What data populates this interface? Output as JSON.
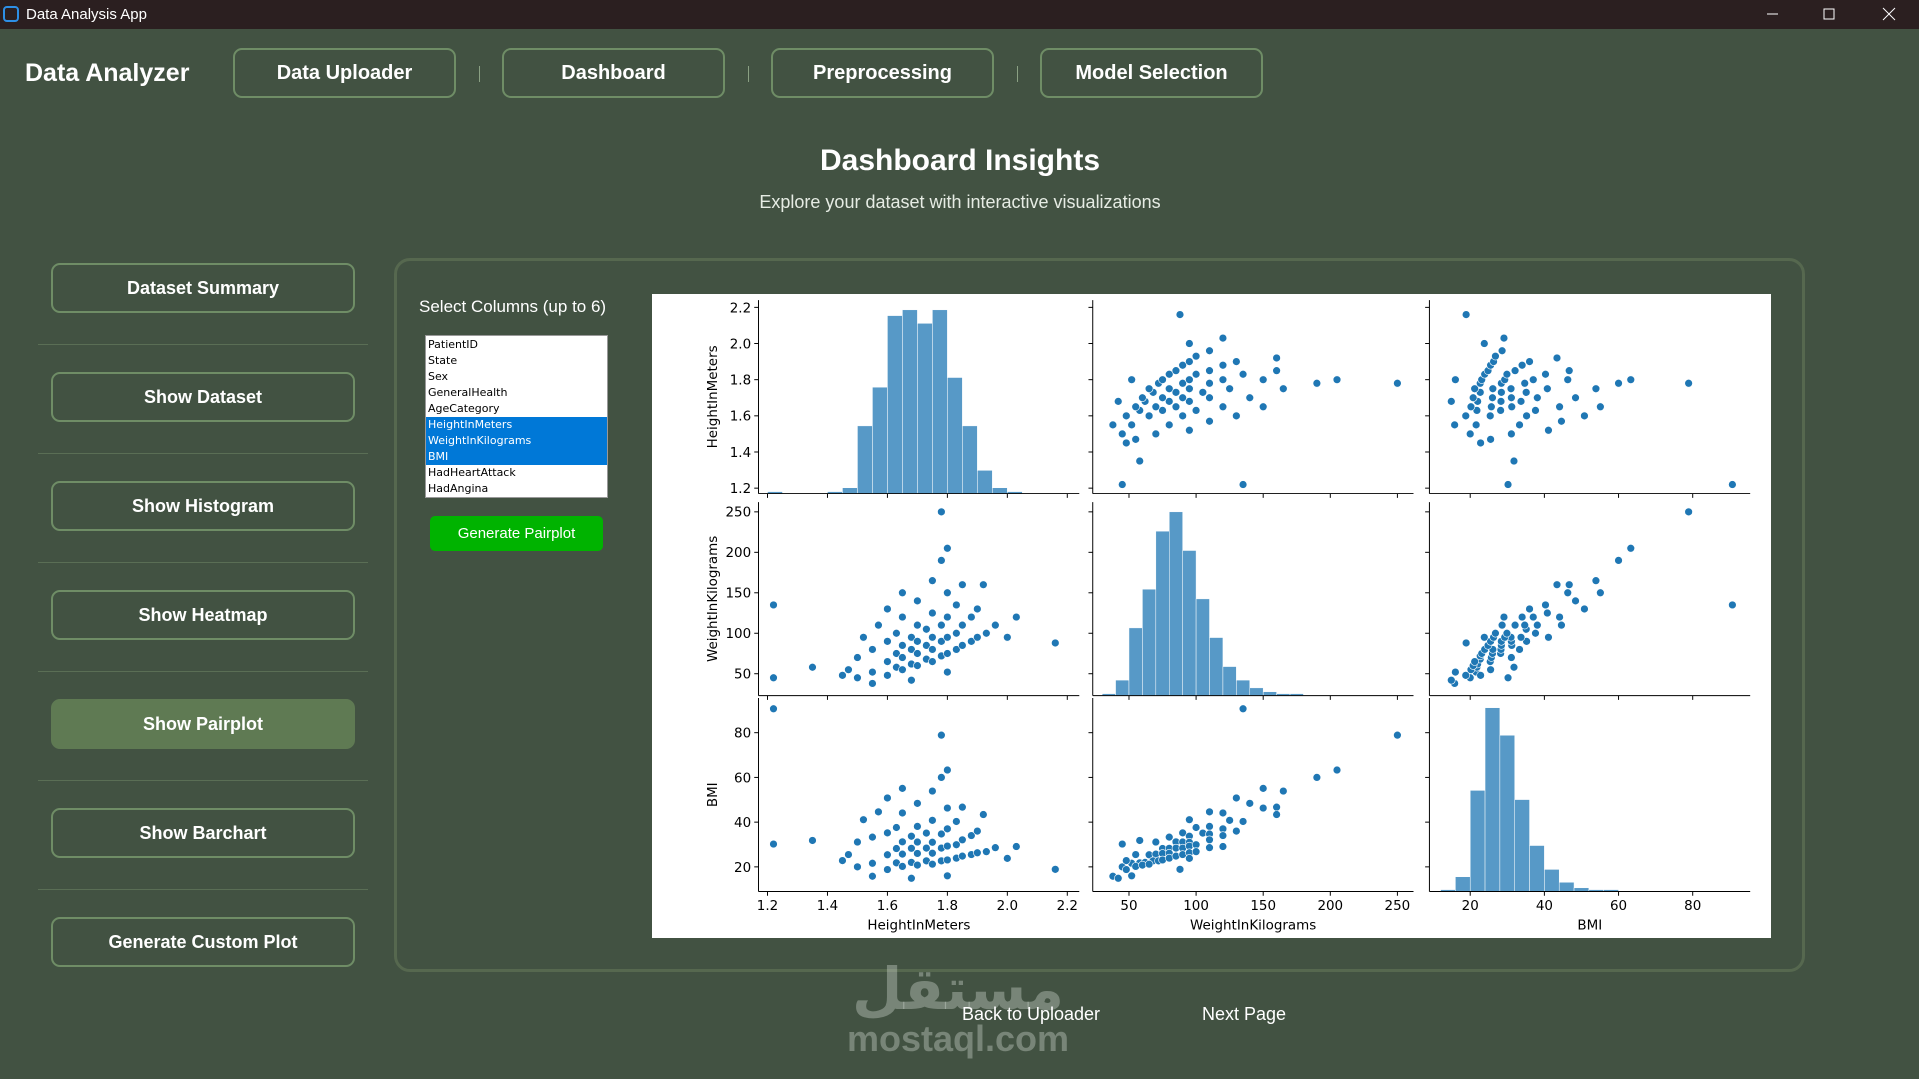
{
  "window": {
    "title": "Data Analysis App"
  },
  "header": {
    "app_name": "Data Analyzer",
    "nav": [
      "Data Uploader",
      "Dashboard",
      "Preprocessing",
      "Model Selection"
    ]
  },
  "page": {
    "title": "Dashboard Insights",
    "subtitle": "Explore your dataset with interactive visualizations"
  },
  "sidebar": {
    "buttons": [
      "Dataset Summary",
      "Show Dataset",
      "Show Histogram",
      "Show Heatmap",
      "Show Pairplot",
      "Show Barchart",
      "Generate Custom Plot"
    ],
    "active": 4
  },
  "selector": {
    "label": "Select Columns (up to 6)",
    "columns": [
      "PatientID",
      "State",
      "Sex",
      "GeneralHealth",
      "AgeCategory",
      "HeightInMeters",
      "WeightInKilograms",
      "BMI",
      "HadHeartAttack",
      "HadAngina"
    ],
    "selected": [
      5,
      6,
      7
    ],
    "button": "Generate Pairplot"
  },
  "footer": {
    "back": "Back to Uploader",
    "next": "Next Page"
  },
  "watermark": [
    "مستقل",
    "mostaql.com"
  ],
  "chart_data": {
    "type": "pairplot",
    "color": "#1f77b4",
    "variables": [
      "HeightInMeters",
      "WeightInKilograms",
      "BMI"
    ],
    "lims": [
      [
        1.17,
        2.24
      ],
      [
        23,
        262
      ],
      [
        9,
        95.5
      ]
    ],
    "ticks": [
      [
        1.2,
        1.4,
        1.6,
        1.8,
        {
          "value": 2,
          "label": "2.0"
        },
        2.2
      ],
      [
        50,
        100,
        150,
        200,
        250
      ],
      [
        20,
        40,
        60,
        80
      ]
    ],
    "hist": [
      {
        "bins": [
          1.2,
          1.25,
          1.3,
          1.35,
          1.4,
          1.45,
          1.5,
          1.55,
          1.6,
          1.65,
          1.7,
          1.75,
          1.8,
          1.85,
          1.9,
          1.95,
          2.0,
          2.05,
          2.1,
          2.15,
          2.2
        ],
        "counts": [
          1,
          0,
          0,
          0,
          1,
          3,
          35,
          55,
          92,
          95,
          88,
          95,
          60,
          35,
          12,
          3,
          1,
          0,
          0,
          0
        ]
      },
      {
        "bins": [
          20,
          30,
          40,
          50,
          60,
          70,
          80,
          90,
          100,
          110,
          120,
          130,
          140,
          150,
          160,
          170,
          180,
          190,
          200,
          210,
          220,
          230,
          240,
          250,
          260
        ],
        "counts": [
          0,
          1,
          8,
          35,
          55,
          85,
          95,
          75,
          50,
          30,
          15,
          8,
          4,
          2,
          1,
          1,
          0,
          0,
          0,
          0,
          0,
          0,
          0,
          0
        ]
      },
      {
        "bins": [
          12,
          16,
          20,
          24,
          28,
          32,
          36,
          40,
          44,
          48,
          52,
          56,
          60,
          64,
          68,
          72,
          76,
          80,
          84,
          88,
          92
        ],
        "counts": [
          1,
          8,
          55,
          100,
          85,
          50,
          25,
          12,
          5,
          2,
          1,
          1,
          0,
          0,
          0,
          0,
          0,
          0,
          0,
          0
        ]
      }
    ],
    "points": [
      [
        1.22,
        135,
        90.7
      ],
      [
        1.78,
        250,
        78.9
      ],
      [
        1.22,
        45,
        30.2
      ],
      [
        1.35,
        58,
        31.8
      ],
      [
        2.16,
        88,
        18.9
      ],
      [
        1.5,
        45,
        20.0
      ],
      [
        1.5,
        70,
        31.1
      ],
      [
        1.52,
        95,
        41.1
      ],
      [
        1.55,
        52,
        21.6
      ],
      [
        1.55,
        80,
        33.3
      ],
      [
        1.57,
        110,
        44.6
      ],
      [
        1.6,
        48,
        18.8
      ],
      [
        1.6,
        65,
        25.4
      ],
      [
        1.6,
        90,
        35.2
      ],
      [
        1.6,
        130,
        50.8
      ],
      [
        1.63,
        58,
        21.8
      ],
      [
        1.63,
        75,
        28.2
      ],
      [
        1.63,
        100,
        37.6
      ],
      [
        1.65,
        55,
        20.2
      ],
      [
        1.65,
        70,
        25.7
      ],
      [
        1.65,
        85,
        31.2
      ],
      [
        1.65,
        120,
        44.1
      ],
      [
        1.65,
        150,
        55.1
      ],
      [
        1.68,
        62,
        22.0
      ],
      [
        1.68,
        80,
        28.3
      ],
      [
        1.68,
        95,
        33.7
      ],
      [
        1.7,
        60,
        20.8
      ],
      [
        1.7,
        75,
        26.0
      ],
      [
        1.7,
        90,
        31.1
      ],
      [
        1.7,
        110,
        38.1
      ],
      [
        1.7,
        140,
        48.4
      ],
      [
        1.73,
        68,
        22.7
      ],
      [
        1.73,
        85,
        28.4
      ],
      [
        1.73,
        105,
        35.1
      ],
      [
        1.75,
        65,
        21.2
      ],
      [
        1.75,
        80,
        26.1
      ],
      [
        1.75,
        95,
        31.0
      ],
      [
        1.75,
        125,
        40.8
      ],
      [
        1.75,
        165,
        53.9
      ],
      [
        1.78,
        72,
        22.7
      ],
      [
        1.78,
        90,
        28.4
      ],
      [
        1.78,
        110,
        34.7
      ],
      [
        1.78,
        190,
        60.0
      ],
      [
        1.8,
        75,
        23.1
      ],
      [
        1.8,
        95,
        29.3
      ],
      [
        1.8,
        120,
        37.0
      ],
      [
        1.8,
        150,
        46.3
      ],
      [
        1.8,
        205,
        63.3
      ],
      [
        1.83,
        80,
        23.9
      ],
      [
        1.83,
        100,
        29.9
      ],
      [
        1.83,
        135,
        40.3
      ],
      [
        1.85,
        85,
        24.8
      ],
      [
        1.85,
        110,
        32.1
      ],
      [
        1.85,
        160,
        46.7
      ],
      [
        1.88,
        90,
        25.5
      ],
      [
        1.88,
        120,
        34.0
      ],
      [
        1.9,
        95,
        26.3
      ],
      [
        1.9,
        130,
        36.0
      ],
      [
        1.93,
        100,
        26.8
      ],
      [
        1.96,
        110,
        28.6
      ],
      [
        2.0,
        95,
        23.8
      ],
      [
        2.03,
        120,
        29.1
      ],
      [
        1.47,
        55,
        25.5
      ],
      [
        1.45,
        48,
        22.8
      ],
      [
        1.55,
        38,
        15.8
      ],
      [
        1.68,
        42,
        14.9
      ],
      [
        1.8,
        52,
        16.0
      ],
      [
        1.92,
        160,
        43.4
      ]
    ]
  }
}
